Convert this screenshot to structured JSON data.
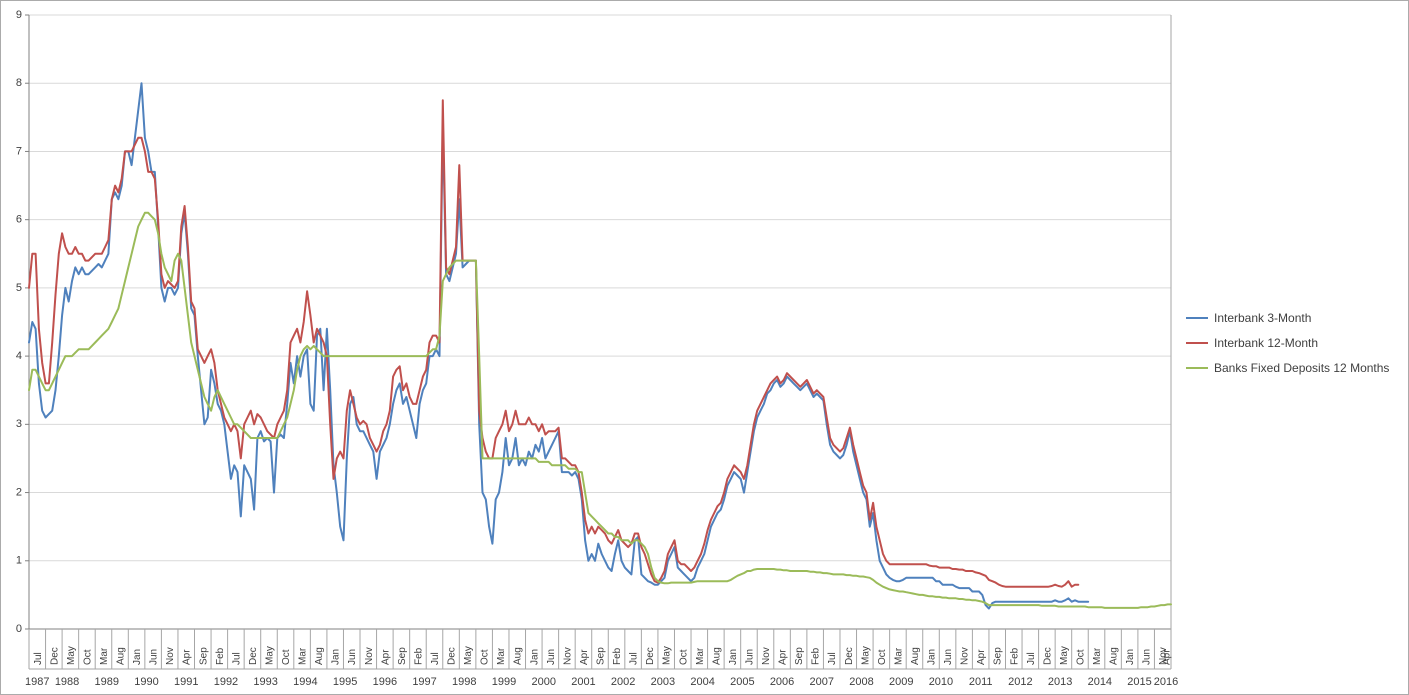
{
  "chart_data": {
    "type": "line",
    "title": "",
    "xlabel": "",
    "ylabel": "",
    "x_start": "1987-07",
    "x_end": "2016-04",
    "x_interval": "monthly",
    "ylim": [
      0,
      9
    ],
    "y_ticks": [
      0,
      1,
      2,
      3,
      4,
      5,
      6,
      7,
      8,
      9
    ],
    "grid": true,
    "legend_position": "right",
    "x_tick_labels_months": [
      "Jul",
      "Dec",
      "May",
      "Oct",
      "Mar",
      "Aug",
      "Jan",
      "Jun",
      "Nov",
      "Apr",
      "Sep",
      "Feb",
      "Jul",
      "Dec",
      "May",
      "Oct",
      "Mar",
      "Aug",
      "Jan",
      "Jun",
      "Nov",
      "Apr",
      "Sep",
      "Feb",
      "Jul",
      "Dec",
      "May",
      "Oct",
      "Mar",
      "Aug",
      "Jan",
      "Jun",
      "Nov",
      "Apr",
      "Sep",
      "Feb",
      "Jul",
      "Dec",
      "May",
      "Oct",
      "Mar",
      "Aug",
      "Jan",
      "Jun",
      "Nov",
      "Apr",
      "Sep",
      "Feb",
      "Jul",
      "Dec",
      "May",
      "Oct",
      "Mar",
      "Aug",
      "Jan",
      "Jun",
      "Nov",
      "Apr",
      "Sep",
      "Feb",
      "Jul",
      "Dec",
      "May",
      "Oct",
      "Mar",
      "Aug",
      "Jan",
      "Jun",
      "Nov",
      "Apr"
    ],
    "x_tick_labels_years": [
      "1987",
      "1988",
      "1989",
      "1990",
      "1991",
      "1992",
      "1993",
      "1994",
      "1995",
      "1996",
      "1997",
      "1998",
      "1999",
      "2000",
      "2001",
      "2002",
      "2003",
      "2004",
      "2005",
      "2006",
      "2007",
      "2008",
      "2009",
      "2010",
      "2011",
      "2012",
      "2013",
      "2014",
      "2015",
      "2016"
    ],
    "series": [
      {
        "name": "Interbank 3-Month",
        "color": "#4F81BD",
        "values": [
          4.2,
          4.5,
          4.4,
          3.6,
          3.2,
          3.1,
          3.15,
          3.2,
          3.5,
          4.0,
          4.6,
          5.0,
          4.8,
          5.1,
          5.3,
          5.2,
          5.3,
          5.2,
          5.2,
          5.25,
          5.3,
          5.35,
          5.3,
          5.4,
          5.5,
          6.3,
          6.4,
          6.3,
          6.5,
          7.0,
          7.0,
          6.8,
          7.2,
          7.6,
          8.0,
          7.2,
          7.0,
          6.7,
          6.7,
          5.9,
          5.0,
          4.8,
          5.0,
          5.0,
          4.9,
          5.0,
          5.8,
          6.1,
          5.5,
          4.7,
          4.6,
          4.0,
          3.5,
          3.0,
          3.1,
          3.8,
          3.6,
          3.3,
          3.2,
          3.0,
          2.6,
          2.2,
          2.4,
          2.3,
          1.65,
          2.4,
          2.3,
          2.2,
          1.75,
          2.8,
          2.9,
          2.75,
          2.8,
          2.75,
          2.0,
          2.8,
          2.85,
          2.8,
          3.3,
          3.9,
          3.6,
          4.0,
          3.7,
          4.0,
          4.1,
          3.3,
          3.2,
          4.3,
          4.4,
          3.5,
          4.4,
          3.5,
          2.4,
          2.0,
          1.5,
          1.3,
          2.5,
          3.3,
          3.4,
          3.0,
          2.9,
          2.9,
          2.8,
          2.7,
          2.6,
          2.2,
          2.6,
          2.7,
          2.8,
          3.0,
          3.3,
          3.5,
          3.6,
          3.3,
          3.4,
          3.2,
          3.0,
          2.8,
          3.3,
          3.5,
          3.6,
          4.0,
          4.0,
          4.1,
          4.0,
          7.4,
          5.2,
          5.1,
          5.3,
          5.5,
          6.3,
          5.3,
          5.35,
          5.4,
          5.4,
          5.4,
          3.0,
          2.0,
          1.9,
          1.5,
          1.25,
          1.9,
          2.0,
          2.3,
          2.8,
          2.4,
          2.5,
          2.8,
          2.4,
          2.5,
          2.4,
          2.6,
          2.5,
          2.7,
          2.6,
          2.8,
          2.5,
          2.6,
          2.7,
          2.8,
          2.9,
          2.3,
          2.3,
          2.3,
          2.25,
          2.3,
          2.2,
          1.9,
          1.3,
          1.0,
          1.1,
          1.0,
          1.25,
          1.1,
          1.0,
          0.9,
          0.85,
          1.1,
          1.3,
          1.0,
          0.9,
          0.85,
          0.8,
          1.3,
          1.35,
          0.8,
          0.75,
          0.7,
          0.68,
          0.65,
          0.65,
          0.7,
          0.75,
          1.0,
          1.1,
          1.2,
          0.9,
          0.85,
          0.8,
          0.75,
          0.7,
          0.75,
          0.9,
          1.0,
          1.1,
          1.3,
          1.5,
          1.6,
          1.7,
          1.75,
          1.9,
          2.1,
          2.2,
          2.3,
          2.25,
          2.2,
          2.0,
          2.3,
          2.6,
          2.9,
          3.1,
          3.2,
          3.3,
          3.45,
          3.5,
          3.6,
          3.65,
          3.55,
          3.6,
          3.7,
          3.65,
          3.6,
          3.55,
          3.5,
          3.55,
          3.6,
          3.5,
          3.4,
          3.45,
          3.4,
          3.35,
          3.0,
          2.7,
          2.6,
          2.55,
          2.5,
          2.55,
          2.7,
          2.9,
          2.6,
          2.4,
          2.2,
          2.0,
          1.9,
          1.5,
          1.7,
          1.3,
          1.0,
          0.9,
          0.8,
          0.75,
          0.72,
          0.7,
          0.7,
          0.72,
          0.75,
          0.75,
          0.75,
          0.75,
          0.75,
          0.75,
          0.75,
          0.75,
          0.75,
          0.7,
          0.7,
          0.65,
          0.65,
          0.65,
          0.65,
          0.62,
          0.6,
          0.6,
          0.6,
          0.6,
          0.55,
          0.55,
          0.55,
          0.5,
          0.35,
          0.3,
          0.38,
          0.4,
          0.4,
          0.4,
          0.4,
          0.4,
          0.4,
          0.4,
          0.4,
          0.4,
          0.4,
          0.4,
          0.4,
          0.4,
          0.4,
          0.4,
          0.4,
          0.4,
          0.4,
          0.42,
          0.4,
          0.4,
          0.42,
          0.45,
          0.4,
          0.42,
          0.4,
          0.4,
          0.4,
          0.4,
          null,
          null,
          null,
          null,
          null,
          null,
          null,
          null,
          null,
          null,
          null,
          null,
          null,
          null,
          null,
          null,
          null,
          null,
          null,
          null,
          null,
          null,
          null,
          null,
          null
        ]
      },
      {
        "name": "Interbank 12-Month",
        "color": "#C0504D",
        "values": [
          5.0,
          5.5,
          5.5,
          4.4,
          3.9,
          3.6,
          3.6,
          4.2,
          4.9,
          5.5,
          5.8,
          5.6,
          5.5,
          5.5,
          5.6,
          5.5,
          5.5,
          5.4,
          5.4,
          5.45,
          5.5,
          5.5,
          5.5,
          5.6,
          5.7,
          6.3,
          6.5,
          6.4,
          6.6,
          7.0,
          7.0,
          7.0,
          7.1,
          7.2,
          7.2,
          7.0,
          6.7,
          6.7,
          6.6,
          6.0,
          5.2,
          5.0,
          5.1,
          5.05,
          5.0,
          5.1,
          5.9,
          6.2,
          5.6,
          4.8,
          4.7,
          4.1,
          4.0,
          3.9,
          4.0,
          4.1,
          3.9,
          3.5,
          3.3,
          3.1,
          3.0,
          2.9,
          3.0,
          2.9,
          2.5,
          3.0,
          3.1,
          3.2,
          3.0,
          3.15,
          3.1,
          3.0,
          2.9,
          2.85,
          2.8,
          3.0,
          3.1,
          3.2,
          3.5,
          4.2,
          4.3,
          4.4,
          4.2,
          4.5,
          4.95,
          4.6,
          4.2,
          4.4,
          4.3,
          4.2,
          4.0,
          3.0,
          2.2,
          2.5,
          2.6,
          2.5,
          3.2,
          3.5,
          3.3,
          3.1,
          3.0,
          3.05,
          3.0,
          2.8,
          2.7,
          2.6,
          2.7,
          2.9,
          3.0,
          3.2,
          3.7,
          3.8,
          3.85,
          3.5,
          3.6,
          3.4,
          3.3,
          3.3,
          3.5,
          3.7,
          3.8,
          4.2,
          4.3,
          4.3,
          4.2,
          7.75,
          5.3,
          5.2,
          5.4,
          5.6,
          6.8,
          5.4,
          5.4,
          5.4,
          5.4,
          5.4,
          3.2,
          2.8,
          2.6,
          2.5,
          2.5,
          2.8,
          2.9,
          3.0,
          3.2,
          2.9,
          3.0,
          3.2,
          3.0,
          3.0,
          3.0,
          3.1,
          3.0,
          3.0,
          2.9,
          3.0,
          2.85,
          2.9,
          2.9,
          2.9,
          2.95,
          2.5,
          2.5,
          2.45,
          2.4,
          2.4,
          2.3,
          2.0,
          1.6,
          1.4,
          1.5,
          1.4,
          1.5,
          1.45,
          1.4,
          1.3,
          1.25,
          1.35,
          1.45,
          1.3,
          1.25,
          1.2,
          1.25,
          1.4,
          1.4,
          1.2,
          1.1,
          0.95,
          0.8,
          0.7,
          0.68,
          0.75,
          0.85,
          1.1,
          1.2,
          1.3,
          1.0,
          0.95,
          0.95,
          0.9,
          0.85,
          0.9,
          1.0,
          1.1,
          1.25,
          1.45,
          1.6,
          1.7,
          1.8,
          1.85,
          2.0,
          2.2,
          2.3,
          2.4,
          2.35,
          2.3,
          2.2,
          2.4,
          2.7,
          3.0,
          3.2,
          3.3,
          3.4,
          3.5,
          3.6,
          3.65,
          3.7,
          3.6,
          3.65,
          3.75,
          3.7,
          3.65,
          3.6,
          3.55,
          3.6,
          3.65,
          3.55,
          3.45,
          3.5,
          3.45,
          3.4,
          3.1,
          2.8,
          2.7,
          2.65,
          2.6,
          2.65,
          2.8,
          2.95,
          2.7,
          2.5,
          2.3,
          2.1,
          2.0,
          1.6,
          1.85,
          1.5,
          1.3,
          1.1,
          1.0,
          0.95,
          0.95,
          0.95,
          0.95,
          0.95,
          0.95,
          0.95,
          0.95,
          0.95,
          0.95,
          0.95,
          0.95,
          0.93,
          0.92,
          0.92,
          0.9,
          0.9,
          0.9,
          0.9,
          0.88,
          0.88,
          0.87,
          0.87,
          0.85,
          0.85,
          0.85,
          0.83,
          0.82,
          0.8,
          0.78,
          0.72,
          0.7,
          0.68,
          0.65,
          0.63,
          0.62,
          0.62,
          0.62,
          0.62,
          0.62,
          0.62,
          0.62,
          0.62,
          0.62,
          0.62,
          0.62,
          0.62,
          0.62,
          0.62,
          0.63,
          0.65,
          0.63,
          0.62,
          0.65,
          0.7,
          0.62,
          0.65,
          0.65,
          null,
          null,
          null,
          null,
          null,
          null,
          null,
          null,
          null,
          null,
          null,
          null,
          null,
          null,
          null,
          null,
          null,
          null,
          null,
          null,
          null,
          null,
          null,
          null,
          null,
          null,
          null,
          null
        ]
      },
      {
        "name": "Banks Fixed Deposits 12 Months",
        "color": "#9BBB59",
        "values": [
          3.5,
          3.8,
          3.8,
          3.7,
          3.6,
          3.5,
          3.5,
          3.6,
          3.7,
          3.8,
          3.9,
          4.0,
          4.0,
          4.0,
          4.05,
          4.1,
          4.1,
          4.1,
          4.1,
          4.15,
          4.2,
          4.25,
          4.3,
          4.35,
          4.4,
          4.5,
          4.6,
          4.7,
          4.9,
          5.1,
          5.3,
          5.5,
          5.7,
          5.9,
          6.0,
          6.1,
          6.1,
          6.05,
          6.0,
          5.8,
          5.5,
          5.3,
          5.2,
          5.1,
          5.4,
          5.5,
          5.4,
          5.0,
          4.6,
          4.2,
          4.0,
          3.8,
          3.6,
          3.4,
          3.3,
          3.2,
          3.4,
          3.5,
          3.4,
          3.3,
          3.2,
          3.1,
          3.0,
          3.0,
          2.95,
          2.9,
          2.85,
          2.8,
          2.8,
          2.8,
          2.8,
          2.8,
          2.8,
          2.8,
          2.8,
          2.8,
          2.9,
          3.0,
          3.1,
          3.3,
          3.5,
          3.8,
          4.0,
          4.1,
          4.15,
          4.1,
          4.15,
          4.1,
          4.05,
          4.0,
          4.0,
          4.0,
          4.0,
          4.0,
          4.0,
          4.0,
          4.0,
          4.0,
          4.0,
          4.0,
          4.0,
          4.0,
          4.0,
          4.0,
          4.0,
          4.0,
          4.0,
          4.0,
          4.0,
          4.0,
          4.0,
          4.0,
          4.0,
          4.0,
          4.0,
          4.0,
          4.0,
          4.0,
          4.0,
          4.0,
          4.0,
          4.05,
          4.1,
          4.1,
          4.3,
          5.1,
          5.2,
          5.3,
          5.35,
          5.4,
          5.4,
          5.4,
          5.4,
          5.4,
          5.4,
          5.4,
          4.0,
          2.5,
          2.5,
          2.5,
          2.5,
          2.5,
          2.5,
          2.5,
          2.5,
          2.5,
          2.5,
          2.5,
          2.5,
          2.5,
          2.5,
          2.5,
          2.5,
          2.5,
          2.45,
          2.45,
          2.45,
          2.45,
          2.4,
          2.4,
          2.4,
          2.4,
          2.4,
          2.35,
          2.35,
          2.35,
          2.3,
          2.3,
          2.0,
          1.7,
          1.65,
          1.6,
          1.55,
          1.5,
          1.45,
          1.4,
          1.4,
          1.35,
          1.35,
          1.3,
          1.3,
          1.3,
          1.25,
          1.3,
          1.3,
          1.25,
          1.2,
          1.1,
          0.9,
          0.75,
          0.7,
          0.68,
          0.67,
          0.67,
          0.68,
          0.68,
          0.68,
          0.68,
          0.68,
          0.68,
          0.68,
          0.69,
          0.7,
          0.7,
          0.7,
          0.7,
          0.7,
          0.7,
          0.7,
          0.7,
          0.7,
          0.7,
          0.72,
          0.75,
          0.78,
          0.8,
          0.82,
          0.85,
          0.85,
          0.87,
          0.88,
          0.88,
          0.88,
          0.88,
          0.88,
          0.88,
          0.87,
          0.87,
          0.86,
          0.86,
          0.85,
          0.85,
          0.85,
          0.85,
          0.85,
          0.85,
          0.84,
          0.84,
          0.83,
          0.83,
          0.82,
          0.82,
          0.81,
          0.8,
          0.8,
          0.8,
          0.8,
          0.79,
          0.79,
          0.78,
          0.78,
          0.77,
          0.77,
          0.76,
          0.75,
          0.72,
          0.68,
          0.65,
          0.62,
          0.6,
          0.58,
          0.57,
          0.56,
          0.55,
          0.55,
          0.54,
          0.53,
          0.52,
          0.51,
          0.5,
          0.5,
          0.49,
          0.48,
          0.48,
          0.47,
          0.47,
          0.46,
          0.46,
          0.45,
          0.45,
          0.45,
          0.44,
          0.44,
          0.43,
          0.43,
          0.42,
          0.42,
          0.41,
          0.4,
          0.38,
          0.35,
          0.35,
          0.35,
          0.35,
          0.35,
          0.35,
          0.35,
          0.35,
          0.35,
          0.35,
          0.35,
          0.35,
          0.35,
          0.35,
          0.35,
          0.35,
          0.34,
          0.34,
          0.34,
          0.34,
          0.34,
          0.33,
          0.33,
          0.33,
          0.33,
          0.33,
          0.33,
          0.33,
          0.33,
          0.33,
          0.32,
          0.32,
          0.32,
          0.32,
          0.32,
          0.31,
          0.31,
          0.31,
          0.31,
          0.31,
          0.31,
          0.31,
          0.31,
          0.31,
          0.31,
          0.31,
          0.32,
          0.32,
          0.32,
          0.33,
          0.33,
          0.34,
          0.35,
          0.35,
          0.36,
          0.36
        ]
      }
    ]
  },
  "colors": {
    "gridline": "#D9D9D9",
    "axis": "#808080",
    "tick_box": "#A6A6A6",
    "text": "#3F3F3F",
    "frame_border": "#ABABAB"
  }
}
